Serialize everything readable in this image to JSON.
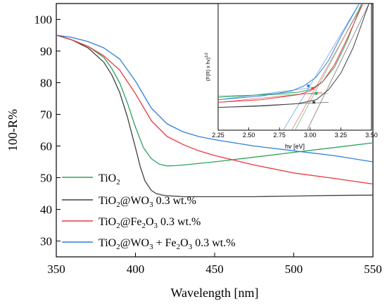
{
  "chart_data": [
    {
      "type": "line",
      "title": "",
      "xlabel": "Wavelength [nm]",
      "ylabel": "100-R%",
      "xlim": [
        350,
        550
      ],
      "ylim": [
        25,
        105
      ],
      "xticks": [
        350,
        400,
        450,
        500,
        550
      ],
      "yticks": [
        30,
        40,
        50,
        60,
        70,
        80,
        90,
        100
      ],
      "grid": false,
      "legend_position": "bottom-left",
      "series": [
        {
          "key": "tio2",
          "name": "TiO",
          "name_sub": "2",
          "name_rest": "",
          "color": "#2ca25f",
          "x": [
            350,
            360,
            370,
            380,
            385,
            390,
            395,
            400,
            405,
            410,
            415,
            420,
            425,
            430,
            450,
            475,
            500,
            525,
            550
          ],
          "y": [
            95,
            93.5,
            91.5,
            88,
            84.5,
            80,
            73.5,
            66,
            59.5,
            56,
            54.3,
            53.7,
            53.8,
            54,
            55,
            56.5,
            58,
            59.5,
            61
          ]
        },
        {
          "key": "tio2_wo3",
          "name": "TiO",
          "name_sub": "2",
          "name_rest": "@WO",
          "name_sub2": "3",
          "name_tail": " 0.3 wt.%",
          "color": "#404040",
          "x": [
            350,
            360,
            370,
            380,
            385,
            390,
            395,
            400,
            403,
            406,
            410,
            413,
            417,
            420,
            430,
            450,
            475,
            500,
            525,
            550
          ],
          "y": [
            95,
            93.5,
            91,
            86.5,
            82.5,
            77,
            69,
            59.5,
            53.5,
            49,
            46,
            45,
            44.5,
            44.3,
            44,
            44,
            44,
            44.2,
            44.4,
            44.5
          ]
        },
        {
          "key": "tio2_fe2o3",
          "name": "TiO",
          "name_sub": "2",
          "name_rest": "@Fe",
          "name_sub2": "2",
          "name_mid": "O",
          "name_sub3": "3",
          "name_tail": " 0.3 wt.%",
          "color": "#e8383d",
          "x": [
            350,
            360,
            370,
            380,
            390,
            400,
            410,
            420,
            430,
            440,
            450,
            475,
            500,
            525,
            550
          ],
          "y": [
            95,
            93.5,
            91.5,
            88.5,
            84,
            76.5,
            68,
            63,
            60.5,
            58.5,
            57,
            54,
            51.5,
            49.8,
            48
          ]
        },
        {
          "key": "tio2_wo3_fe2o3",
          "name": "TiO",
          "name_sub": "2",
          "name_rest": "@WO",
          "name_sub2": "3",
          "name_mid": " + Fe",
          "name_sub3": "2",
          "name_mid2": "O",
          "name_sub4": "3",
          "name_tail": " 0.3 wt.%",
          "color": "#2f7fd8",
          "x": [
            350,
            360,
            370,
            380,
            390,
            400,
            410,
            420,
            430,
            440,
            450,
            475,
            500,
            525,
            550
          ],
          "y": [
            95,
            94.3,
            93,
            91,
            87.5,
            80.5,
            72,
            67,
            64.5,
            63,
            62,
            60,
            58.5,
            57,
            55
          ]
        }
      ]
    },
    {
      "type": "line",
      "title": "",
      "xlabel": "hv [eV]",
      "ylabel": "(F(R) x hv)^1/2",
      "ylabel_base": "(F(R) x hv)",
      "ylabel_exp": "1/2",
      "xlim": [
        2.25,
        3.5
      ],
      "ylim": [
        0,
        1
      ],
      "xticks": [
        2.25,
        2.5,
        2.75,
        3.0,
        3.25,
        3.5
      ],
      "xtick_labels": [
        "2.25",
        "2.50",
        "2.75",
        "3.00",
        "3.25",
        "3.50"
      ],
      "grid": false,
      "series": [
        {
          "key": "tio2",
          "color": "#2ca25f",
          "x": [
            2.25,
            2.6,
            2.9,
            3.0,
            3.1,
            3.2,
            3.3,
            3.42
          ],
          "y": [
            0.26,
            0.28,
            0.3,
            0.32,
            0.38,
            0.5,
            0.7,
            1.0
          ]
        },
        {
          "key": "tio2_wo3",
          "color": "#404040",
          "x": [
            2.25,
            2.6,
            2.9,
            3.05,
            3.15,
            3.25,
            3.35,
            3.48
          ],
          "y": [
            0.18,
            0.19,
            0.21,
            0.24,
            0.32,
            0.45,
            0.65,
            1.0
          ]
        },
        {
          "key": "tio2_fe2o3",
          "color": "#e8383d",
          "x": [
            2.25,
            2.6,
            2.9,
            3.0,
            3.1,
            3.2,
            3.3,
            3.43
          ],
          "y": [
            0.22,
            0.24,
            0.28,
            0.31,
            0.38,
            0.52,
            0.72,
            1.0
          ]
        },
        {
          "key": "tio2_wo3_fe2o3",
          "color": "#2f7fd8",
          "x": [
            2.25,
            2.6,
            2.85,
            2.95,
            3.05,
            3.15,
            3.25,
            3.4
          ],
          "y": [
            0.24,
            0.27,
            0.31,
            0.35,
            0.42,
            0.55,
            0.74,
            1.0
          ]
        }
      ],
      "tangent_lines": [
        {
          "color": "#2ca25f",
          "x": [
            2.85,
            3.42
          ],
          "y": [
            -0.05,
            1.0
          ]
        },
        {
          "color": "#404040",
          "x": [
            2.95,
            3.48
          ],
          "y": [
            -0.05,
            1.0
          ]
        },
        {
          "color": "#e8383d",
          "x": [
            2.82,
            3.43
          ],
          "y": [
            -0.05,
            1.0
          ]
        },
        {
          "color": "#2f7fd8",
          "x": [
            2.75,
            3.4
          ],
          "y": [
            -0.05,
            1.0
          ]
        }
      ],
      "baseline_lines": [
        {
          "color": "#2ca25f",
          "x": [
            2.25,
            3.15
          ],
          "y": [
            0.27,
            0.29
          ]
        },
        {
          "color": "#404040",
          "x": [
            2.25,
            3.15
          ],
          "y": [
            0.18,
            0.22
          ]
        },
        {
          "color": "#e8383d",
          "x": [
            2.25,
            3.1
          ],
          "y": [
            0.22,
            0.3
          ]
        },
        {
          "color": "#2f7fd8",
          "x": [
            2.25,
            3.05
          ],
          "y": [
            0.24,
            0.34
          ]
        }
      ],
      "markers": [
        {
          "color": "#2f7fd8",
          "x": 2.985,
          "y": 0.35
        },
        {
          "color": "#e8383d",
          "x": 3.02,
          "y": 0.33
        },
        {
          "color": "#2ca25f",
          "x": 3.05,
          "y": 0.29
        },
        {
          "color": "#404040",
          "x": 3.03,
          "y": 0.22
        }
      ]
    }
  ]
}
